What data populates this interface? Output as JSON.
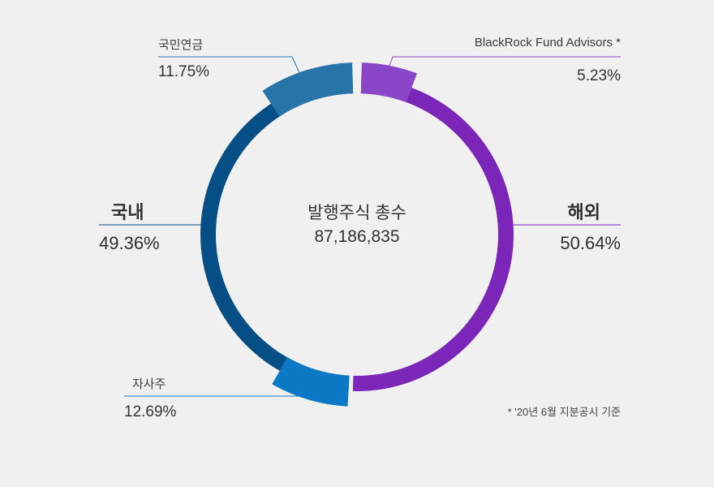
{
  "chart_data": {
    "type": "pie",
    "variant": "donut",
    "center": {
      "title": "발행주식 총수",
      "value": "87,186,835"
    },
    "groups": [
      {
        "name": "국내",
        "value": 49.36,
        "value_label": "49.36%",
        "color": "#064f86"
      },
      {
        "name": "해외",
        "value": 50.64,
        "value_label": "50.64%",
        "color": "#7b26b9"
      }
    ],
    "highlights": [
      {
        "name": "국민연금",
        "value": 11.75,
        "value_label": "11.75%",
        "group": "국내",
        "color": "#2775a8"
      },
      {
        "name": "자사주",
        "value": 12.69,
        "value_label": "12.69%",
        "group": "국내",
        "color": "#0b79c6"
      },
      {
        "name": "BlackRock Fund Advisors *",
        "value": 5.23,
        "value_label": "5.23%",
        "group": "해외",
        "color": "#8b45c7"
      }
    ],
    "footnote": "* '20년 6월 지분공시 기준"
  }
}
